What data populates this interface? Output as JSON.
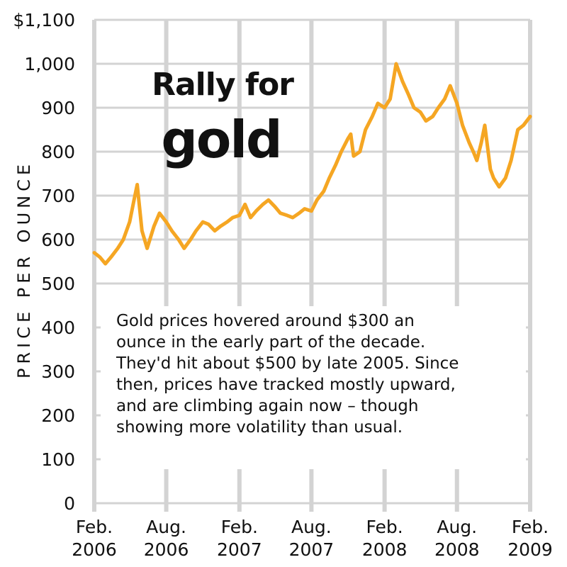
{
  "chart_data": {
    "type": "line",
    "title": "Rally for",
    "subtitle": "gold",
    "ylabel": "PRICE PER OUNCE",
    "xlabel": "",
    "ylim": [
      0,
      1100
    ],
    "xlim": [
      "2006-02",
      "2009-02"
    ],
    "grid": true,
    "line_color": "#f5a623",
    "grid_color": "#d3d3d3",
    "y_ticks": [
      {
        "value": 0,
        "label": "0"
      },
      {
        "value": 100,
        "label": "100"
      },
      {
        "value": 200,
        "label": "200"
      },
      {
        "value": 300,
        "label": "300"
      },
      {
        "value": 400,
        "label": "400"
      },
      {
        "value": 500,
        "label": "500"
      },
      {
        "value": 600,
        "label": "600"
      },
      {
        "value": 700,
        "label": "700"
      },
      {
        "value": 800,
        "label": "800"
      },
      {
        "value": 900,
        "label": "900"
      },
      {
        "value": 1000,
        "label": "1,000"
      },
      {
        "value": 1100,
        "label": "$1,100"
      }
    ],
    "x_ticks": [
      {
        "date": "2006-02",
        "line1": "Feb.",
        "line2": "2006"
      },
      {
        "date": "2006-08",
        "line1": "Aug.",
        "line2": "2006"
      },
      {
        "date": "2007-02",
        "line1": "Feb.",
        "line2": "2007"
      },
      {
        "date": "2007-08",
        "line1": "Aug.",
        "line2": "2007"
      },
      {
        "date": "2008-02",
        "line1": "Feb.",
        "line2": "2008"
      },
      {
        "date": "2008-08",
        "line1": "Aug.",
        "line2": "2008"
      },
      {
        "date": "2009-02",
        "line1": "Feb.",
        "line2": "2009"
      }
    ],
    "series": [
      {
        "x": [
          "2006-02-01",
          "2006-02-15",
          "2006-03-01",
          "2006-03-15",
          "2006-04-01",
          "2006-04-15",
          "2006-05-01",
          "2006-05-12",
          "2006-05-20",
          "2006-06-01",
          "2006-06-14",
          "2006-07-01",
          "2006-07-15",
          "2006-08-01",
          "2006-08-15",
          "2006-09-01",
          "2006-09-15",
          "2006-10-01",
          "2006-10-15",
          "2006-11-01",
          "2006-11-15",
          "2006-12-01",
          "2006-12-15",
          "2007-01-01",
          "2007-01-15",
          "2007-02-01",
          "2007-02-15",
          "2007-03-01",
          "2007-03-15",
          "2007-04-01",
          "2007-04-15",
          "2007-05-01",
          "2007-05-15",
          "2007-06-01",
          "2007-06-15",
          "2007-07-01",
          "2007-07-15",
          "2007-08-01",
          "2007-08-15",
          "2007-09-01",
          "2007-09-15",
          "2007-10-01",
          "2007-10-15",
          "2007-11-01",
          "2007-11-08",
          "2007-11-15",
          "2007-12-01",
          "2007-12-15",
          "2008-01-01",
          "2008-01-15",
          "2008-02-01",
          "2008-02-15",
          "2008-03-01",
          "2008-03-17",
          "2008-04-01",
          "2008-04-15",
          "2008-05-01",
          "2008-05-15",
          "2008-06-01",
          "2008-06-15",
          "2008-07-01",
          "2008-07-15",
          "2008-08-01",
          "2008-08-15",
          "2008-09-01",
          "2008-09-11",
          "2008-09-20",
          "2008-10-01",
          "2008-10-10",
          "2008-10-24",
          "2008-11-01",
          "2008-11-15",
          "2008-12-01",
          "2008-12-15",
          "2009-01-01",
          "2009-01-15",
          "2009-02-01"
        ],
        "values": [
          570,
          560,
          545,
          560,
          580,
          600,
          640,
          690,
          725,
          620,
          580,
          630,
          660,
          640,
          620,
          600,
          580,
          600,
          620,
          640,
          635,
          620,
          630,
          640,
          650,
          655,
          680,
          650,
          665,
          680,
          690,
          675,
          660,
          655,
          650,
          660,
          670,
          665,
          690,
          710,
          740,
          770,
          800,
          830,
          840,
          790,
          800,
          850,
          880,
          910,
          900,
          920,
          1000,
          960,
          930,
          900,
          890,
          870,
          880,
          900,
          920,
          950,
          910,
          860,
          820,
          800,
          780,
          820,
          860,
          760,
          740,
          720,
          740,
          780,
          850,
          860,
          880
        ]
      }
    ]
  },
  "note": {
    "lines": [
      "Gold prices hovered around $300 an",
      "ounce in the early part of the decade.",
      "They'd hit about $500 by late 2005. Since",
      "then, prices have tracked mostly upward,",
      "and are climbing again now – though",
      "showing more volatility than usual."
    ]
  }
}
